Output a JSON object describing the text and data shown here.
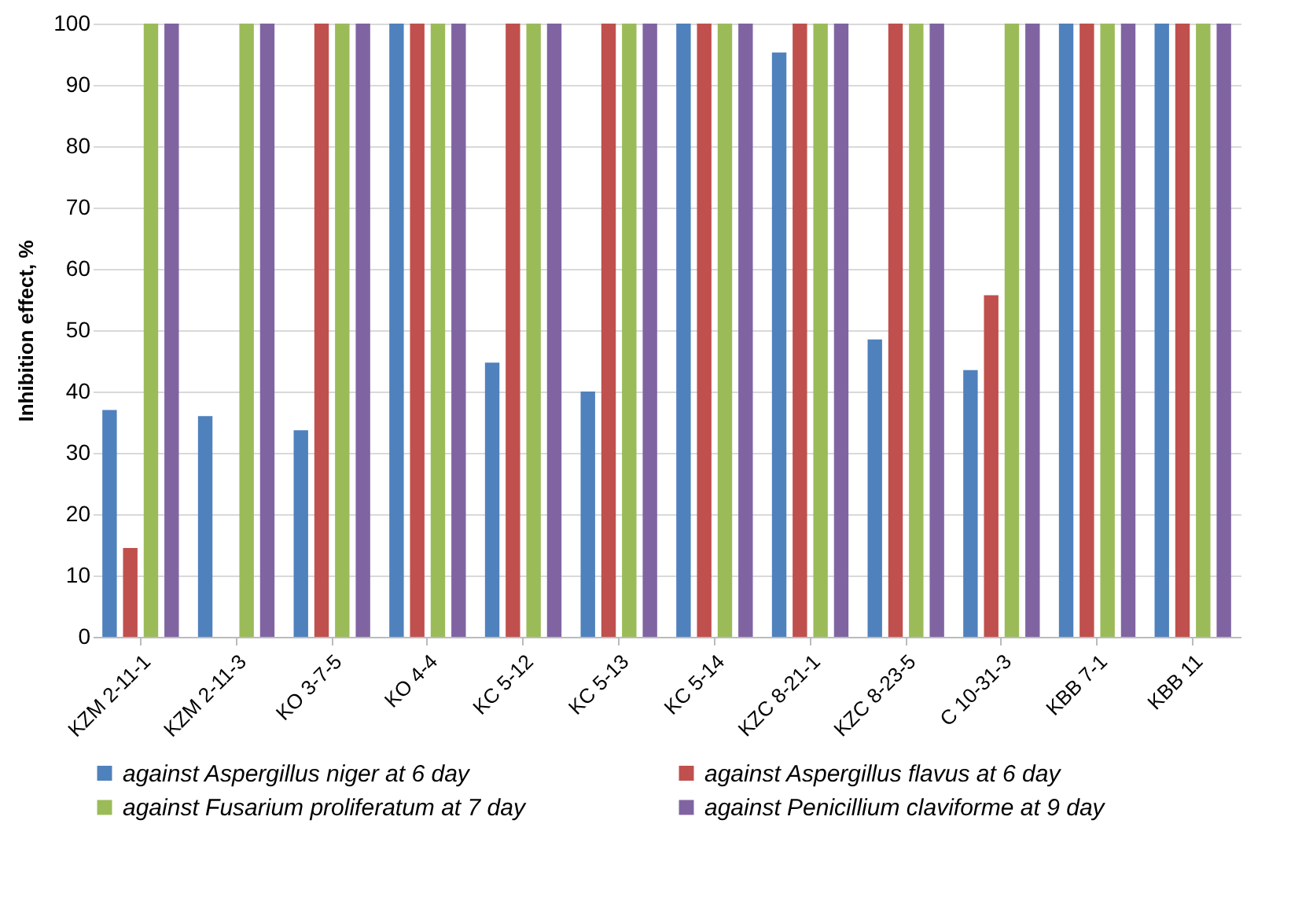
{
  "chart_data": {
    "type": "bar",
    "ylabel": "Inhibition effect, %",
    "categories": [
      "KZM 2-11-1",
      "KZM 2-11-3",
      "KO 3-7-5",
      "KO 4-4",
      "KC 5-12",
      "KC 5-13",
      "KC 5-14",
      "KZC 8-21-1",
      "KZC 8-23-5",
      "C 10-31-3",
      "KBB 7-1",
      "KBB 11"
    ],
    "series": [
      {
        "name": "against Aspergillus niger at 6 day",
        "color": "#4f81bd",
        "values": [
          37,
          36,
          33.7,
          100,
          44.7,
          40,
          100,
          95.3,
          48.5,
          43.5,
          100,
          100
        ]
      },
      {
        "name": "against Aspergillus flavus at 6 day",
        "color": "#c0504d",
        "values": [
          14.5,
          0,
          100,
          100,
          100,
          100,
          100,
          100,
          100,
          55.7,
          100,
          100
        ]
      },
      {
        "name": "against Fusarium proliferatum at 7 day",
        "color": "#9bbb59",
        "values": [
          100,
          100,
          100,
          100,
          100,
          100,
          100,
          100,
          100,
          100,
          100,
          100
        ]
      },
      {
        "name": "against Penicillium claviforme at 9 day",
        "color": "#8064a2",
        "values": [
          100,
          100,
          100,
          100,
          100,
          100,
          100,
          100,
          100,
          100,
          100,
          100
        ]
      }
    ],
    "ylim": [
      0,
      100
    ],
    "yticks": [
      0,
      10,
      20,
      30,
      40,
      50,
      60,
      70,
      80,
      90,
      100
    ],
    "grid": "y",
    "legend": "bottom"
  }
}
